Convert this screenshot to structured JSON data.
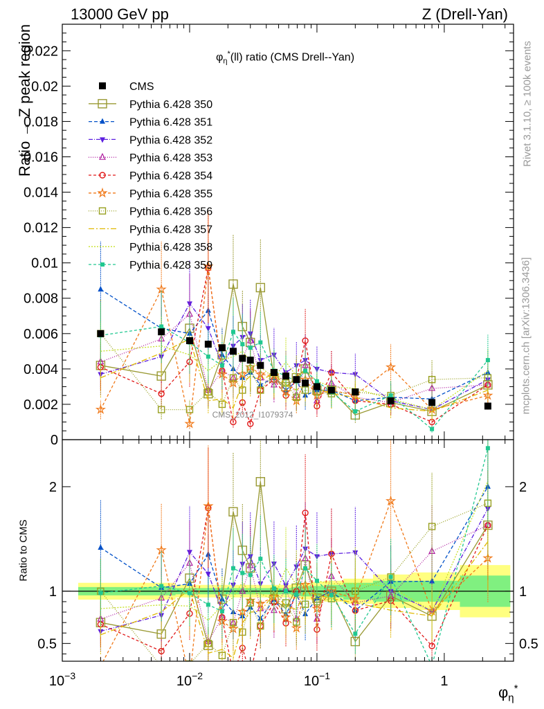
{
  "header": {
    "left": "13000 GeV pp",
    "right": "Z (Drell-Yan)"
  },
  "side": {
    "top": "Rivet 3.1.10, ≥ 100k events",
    "bottom": "mcplots.cern.ch [arXiv:1306.3436]"
  },
  "watermark": "CMS_2012_I1079374",
  "colors": {
    "CMS": "#000000",
    "band_inner": "#80f080",
    "band_outer": "#ffff80"
  },
  "chart_data": [
    {
      "type": "line",
      "title": "φ*η(ll) ratio (CMS Drell--Yan)",
      "title_parts": {
        "phi": "φ",
        "sup": "*",
        "sub": "η",
        "rest": "(ll) ratio (CMS Drell--Yan)"
      },
      "ylabel": "Ratio → Z peak region",
      "xscale": "log",
      "xlim": [
        0.001,
        3.5
      ],
      "ylim": [
        0,
        0.0235
      ],
      "yticks": [
        "0",
        "0.002",
        "0.004",
        "0.006",
        "0.008",
        "0.01",
        "0.012",
        "0.014",
        "0.016",
        "0.018",
        "0.02",
        "0.022"
      ],
      "legend_position": "top-left",
      "x": [
        0.002,
        0.006,
        0.01,
        0.014,
        0.018,
        0.022,
        0.026,
        0.03,
        0.036,
        0.046,
        0.057,
        0.069,
        0.081,
        0.1,
        0.13,
        0.2,
        0.38,
        0.8,
        2.2
      ],
      "cms": [
        0.006,
        0.0061,
        0.0056,
        0.0054,
        0.0052,
        0.005,
        0.0046,
        0.0045,
        0.0042,
        0.0038,
        0.0036,
        0.0034,
        0.0032,
        0.003,
        0.0028,
        0.0027,
        0.0022,
        0.0021,
        0.0019
      ],
      "series": [
        {
          "name": "Pythia 6.428 350",
          "color": "#999933",
          "marker": "square-open",
          "dash": "",
          "size": 12,
          "values": [
            0.0042,
            0.0036,
            0.0063,
            0.0026,
            0.0048,
            0.0088,
            0.0064,
            0.0055,
            0.0086,
            0.0035,
            0.003,
            0.0035,
            0.004,
            0.0028,
            0.0028,
            0.0014,
            0.0021,
            0.0016,
            0.0031
          ]
        },
        {
          "name": "Pythia 6.428 351",
          "color": "#0050c8",
          "marker": "triangle-up",
          "dash": "5,3",
          "size": 8,
          "values": [
            0.0085,
            0.0063,
            0.006,
            0.0073,
            0.0048,
            0.004,
            0.0035,
            0.0038,
            0.0031,
            0.0035,
            0.0028,
            0.0033,
            0.0025,
            0.0028,
            0.0028,
            0.0022,
            0.0024,
            0.0023,
            0.0038
          ]
        },
        {
          "name": "Pythia 6.428 352",
          "color": "#5c1ee0",
          "marker": "triangle-down",
          "dash": "6,2,1,2",
          "size": 8,
          "values": [
            0.0037,
            0.0047,
            0.0077,
            0.0063,
            0.0042,
            0.0053,
            0.0058,
            0.006,
            0.0045,
            0.0048,
            0.0038,
            0.0042,
            0.0045,
            0.004,
            0.0038,
            0.0037,
            0.0022,
            0.0017,
            0.0034
          ]
        },
        {
          "name": "Pythia 6.428 353",
          "color": "#b020a0",
          "marker": "triangle-open",
          "dash": "1,2",
          "size": 8,
          "values": [
            0.0044,
            0.0057,
            0.0071,
            0.0028,
            0.0039,
            0.0035,
            0.0046,
            0.0056,
            0.0035,
            0.0031,
            0.0037,
            0.0025,
            0.0042,
            0.0022,
            0.0032,
            0.0024,
            0.0021,
            0.0029,
            0.0031
          ]
        },
        {
          "name": "Pythia 6.428 354",
          "color": "#e01818",
          "marker": "circle-open",
          "dash": "4,3",
          "size": 8,
          "values": [
            0.0041,
            0.0026,
            0.0044,
            0.0097,
            0.0039,
            0.001,
            0.0021,
            0.0009,
            0.0028,
            0.0034,
            0.0025,
            0.0034,
            0.0056,
            0.0019,
            0.0038,
            0.0022,
            0.002,
            0.001,
            0.0031
          ]
        },
        {
          "name": "Pythia 6.428 355",
          "color": "#f07818",
          "marker": "star",
          "dash": "4,3",
          "size": 10,
          "values": [
            0.0017,
            0.0085,
            0.0009,
            0.0098,
            0.0037,
            0.0032,
            0.0037,
            0.0041,
            0.0037,
            0.0036,
            0.0027,
            0.0022,
            0.0034,
            0.0025,
            0.0028,
            0.0025,
            0.0041,
            0.0017,
            0.0025
          ]
        },
        {
          "name": "Pythia 6.428 356",
          "color": "#98a020",
          "marker": "square-open-small",
          "dash": "1,2",
          "size": 9,
          "values": [
            0.006,
            0.0017,
            0.0017,
            0.0027,
            0.002,
            0.0035,
            0.0028,
            0.004,
            0.0028,
            0.0038,
            0.0032,
            0.0024,
            0.0028,
            0.0027,
            0.0026,
            0.0027,
            0.0025,
            0.0034,
            0.0035
          ]
        },
        {
          "name": "Pythia 6.428 357",
          "color": "#e0b800",
          "marker": "none",
          "dash": "8,3,2,3",
          "size": 0,
          "values": [
            0.0035,
            0.0049,
            0.0057,
            0.0022,
            0.0023,
            0.0018,
            0.0032,
            0.0036,
            0.0034,
            0.0037,
            0.0031,
            0.0028,
            0.0032,
            0.0029,
            0.0026,
            0.0024,
            0.0018,
            0.0016,
            0.0028
          ]
        },
        {
          "name": "Pythia 6.428 358",
          "color": "#c8e028",
          "marker": "none",
          "dash": "2,2",
          "size": 0,
          "values": [
            0.005,
            0.0053,
            0.0048,
            0.0039,
            0.0045,
            0.0047,
            0.005,
            0.0044,
            0.0041,
            0.0035,
            0.0044,
            0.0036,
            0.0039,
            0.0033,
            0.003,
            0.0029,
            0.0023,
            0.0017,
            0.0039
          ]
        },
        {
          "name": "Pythia 6.428 359",
          "color": "#20c890",
          "marker": "square-small",
          "dash": "4,3",
          "size": 6,
          "values": [
            0.0059,
            0.0064,
            0.0055,
            0.0047,
            0.0042,
            0.0061,
            0.0054,
            0.0052,
            0.0055,
            0.0039,
            0.0036,
            0.0033,
            0.0039,
            0.0033,
            0.0027,
            0.0016,
            0.0025,
            0.0006,
            0.0045
          ]
        }
      ]
    },
    {
      "type": "line",
      "ylabel": "Ratio to CMS",
      "xlabel": "φ*η",
      "xlabel_parts": {
        "phi": "φ",
        "sup": "*",
        "sub": "η"
      },
      "xscale": "log",
      "xlim": [
        0.001,
        3.5
      ],
      "ylim": [
        0.33,
        2.45
      ],
      "yticks": [
        "0.5",
        "1",
        "2"
      ],
      "xticks": [
        "10−3",
        "10−2",
        "10−1",
        "1"
      ],
      "xtick_parts": [
        {
          "base": "10",
          "exp": "−3"
        },
        {
          "base": "10",
          "exp": "−2"
        },
        {
          "base": "10",
          "exp": "−1"
        },
        {
          "base": "1",
          "exp": ""
        }
      ],
      "reference": 1,
      "band_inner": [
        0.04,
        0.04,
        0.03,
        0.03,
        0.03,
        0.03,
        0.03,
        0.03,
        0.03,
        0.03,
        0.03,
        0.04,
        0.05,
        0.05,
        0.06,
        0.08,
        0.1,
        0.1,
        0.15
      ],
      "band_outer": [
        0.08,
        0.08,
        0.06,
        0.06,
        0.06,
        0.06,
        0.06,
        0.06,
        0.06,
        0.06,
        0.06,
        0.07,
        0.08,
        0.09,
        0.1,
        0.12,
        0.16,
        0.18,
        0.25
      ]
    }
  ]
}
